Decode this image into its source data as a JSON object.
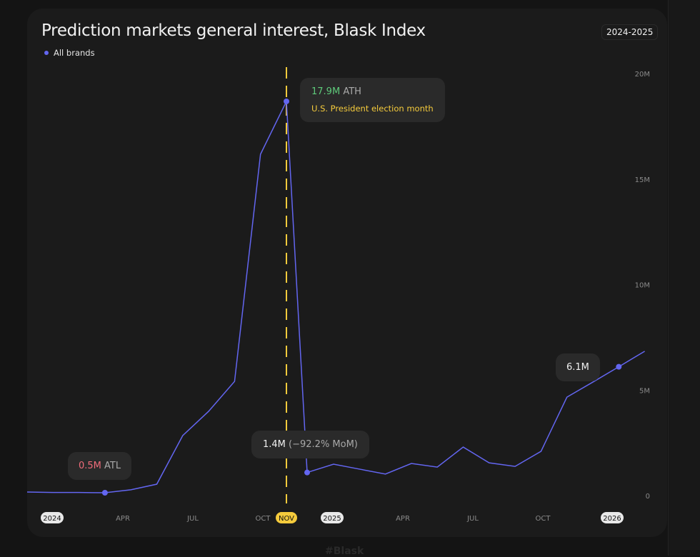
{
  "title": "Prediction markets general interest, Blask Index",
  "range_button": "2024-2025",
  "legend": [
    {
      "label": "All brands",
      "color": "#6366f1"
    }
  ],
  "watermark": "#Blask",
  "colors": {
    "line": "#6366f1",
    "highlight": "#f5cb3c",
    "ath": "#5ec97a",
    "atl": "#f06c7a"
  },
  "chart_data": {
    "type": "line",
    "title": "Prediction markets general interest, Blask Index",
    "series": [
      {
        "name": "All brands",
        "x": [
          "2024-01",
          "2024-02",
          "2024-03",
          "2024-04",
          "2024-05",
          "2024-06",
          "2024-07",
          "2024-08",
          "2024-09",
          "2024-10",
          "2024-11",
          "2024-12",
          "2025-01",
          "2025-02",
          "2025-03",
          "2025-04",
          "2025-05",
          "2025-06",
          "2025-07",
          "2025-08",
          "2025-09",
          "2025-10",
          "2025-11",
          "2025-12",
          "2026-01"
        ],
        "values": [
          0.53,
          0.51,
          0.51,
          0.5,
          0.63,
          0.88,
          3.04,
          4.12,
          5.45,
          15.55,
          17.9,
          1.4,
          1.77,
          1.55,
          1.33,
          1.8,
          1.64,
          2.53,
          1.83,
          1.67,
          2.34,
          4.75,
          5.42,
          6.1,
          6.79
        ]
      }
    ],
    "y_ticks": [
      "0",
      "5M",
      "10M",
      "15M",
      "20M"
    ],
    "y_tick_values": [
      0,
      5,
      10,
      15,
      20
    ],
    "x_ticks": [
      {
        "label": "2024",
        "year": true
      },
      {
        "label": "APR"
      },
      {
        "label": "JUL"
      },
      {
        "label": "OCT"
      },
      {
        "label": "NOV",
        "highlight": true
      },
      {
        "label": "2025",
        "year": true
      },
      {
        "label": "APR"
      },
      {
        "label": "JUL"
      },
      {
        "label": "OCT"
      },
      {
        "label": "2026",
        "year": true
      }
    ],
    "ylim": [
      0,
      20
    ],
    "grid": false,
    "legend_position": "top-left",
    "annotations": {
      "ath": {
        "value": "17.9M",
        "tag": "ATH",
        "note": "U.S. President election month"
      },
      "atl": {
        "value": "0.5M",
        "tag": "ATL"
      },
      "drop": {
        "value": "1.4M",
        "change": "(−92.2% MoM)"
      },
      "last": {
        "value": "6.1M"
      }
    }
  }
}
